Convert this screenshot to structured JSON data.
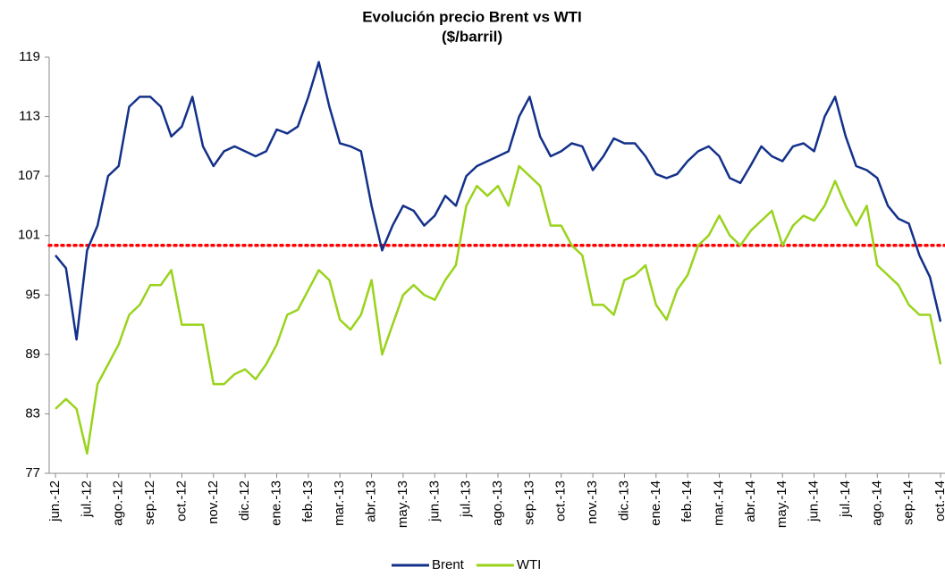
{
  "chart_data": {
    "type": "line",
    "title": "Evolución precio Brent vs WTI",
    "subtitle": "($/barril)",
    "categories": [
      "jun.-12",
      null,
      null,
      "jul.-12",
      null,
      null,
      "ago.-12",
      null,
      null,
      "sep.-12",
      null,
      null,
      "oct.-12",
      null,
      null,
      "nov.-12",
      null,
      null,
      "dic.-12",
      null,
      null,
      "ene.-13",
      null,
      null,
      "feb.-13",
      null,
      null,
      "mar.-13",
      null,
      null,
      "abr.-13",
      null,
      null,
      "may.-13",
      null,
      null,
      "jun.-13",
      null,
      null,
      "jul.-13",
      null,
      null,
      "ago.-13",
      null,
      null,
      "sep.-13",
      null,
      null,
      "oct.-13",
      null,
      null,
      "nov.-13",
      null,
      null,
      "dic.-13",
      null,
      null,
      "ene.-14",
      null,
      null,
      "feb.-14",
      null,
      null,
      "mar.-14",
      null,
      null,
      "abr.-14",
      null,
      null,
      "may.-14",
      null,
      null,
      "jun.-14",
      null,
      null,
      "jul.-14",
      null,
      null,
      "ago.-14",
      null,
      null,
      "sep.-14",
      null,
      null,
      "oct.-14"
    ],
    "series": [
      {
        "name": "Brent",
        "color": "#14318a",
        "values": [
          99,
          97.7,
          90.5,
          99.5,
          102,
          107,
          108,
          114,
          115,
          115,
          114,
          111,
          112,
          115,
          110,
          108,
          109.5,
          110,
          109.5,
          109,
          109.5,
          111.7,
          111.3,
          112,
          115,
          118.5,
          114,
          110.3,
          110,
          109.5,
          104,
          99.5,
          102,
          104,
          103.5,
          102,
          103,
          105,
          104,
          107,
          108,
          108.5,
          109,
          109.5,
          113,
          115,
          111,
          109,
          109.5,
          110.3,
          110,
          107.6,
          109,
          110.8,
          110.3,
          110.3,
          109,
          107.2,
          106.8,
          107.2,
          108.5,
          109.5,
          110,
          109,
          106.8,
          106.3,
          108.1,
          110,
          109,
          108.5,
          110,
          110.3,
          109.5,
          113,
          115,
          111,
          108,
          107.6,
          106.8,
          104,
          102.7,
          102.2,
          99,
          96.8,
          92.3
        ]
      },
      {
        "name": "WTI",
        "color": "#99d31c",
        "values": [
          83.5,
          84.5,
          83.5,
          79,
          86,
          88,
          90,
          93,
          94,
          96,
          96,
          97.5,
          92,
          92,
          92,
          86,
          86,
          87,
          87.5,
          86.5,
          88,
          90,
          93,
          93.5,
          95.5,
          97.5,
          96.5,
          92.5,
          91.5,
          93,
          96.5,
          89,
          92,
          95,
          96,
          95,
          94.5,
          96.5,
          98,
          104,
          106,
          105,
          106,
          104,
          108,
          107,
          106,
          102,
          102,
          100,
          99,
          94,
          94,
          93,
          96.5,
          97,
          98,
          94,
          92.5,
          95.5,
          97,
          100,
          101,
          103,
          101,
          100,
          101.5,
          102.5,
          103.5,
          100,
          102,
          103,
          102.5,
          104,
          106.5,
          104,
          102,
          104,
          98,
          97,
          96,
          94,
          93,
          93,
          88
        ]
      }
    ],
    "reference_line": {
      "value": 100,
      "color": "#ff0000"
    },
    "ylim": [
      77,
      119
    ],
    "yticks": [
      77,
      83,
      89,
      95,
      101,
      107,
      113,
      119
    ],
    "grid": false,
    "legend": "bottom"
  }
}
